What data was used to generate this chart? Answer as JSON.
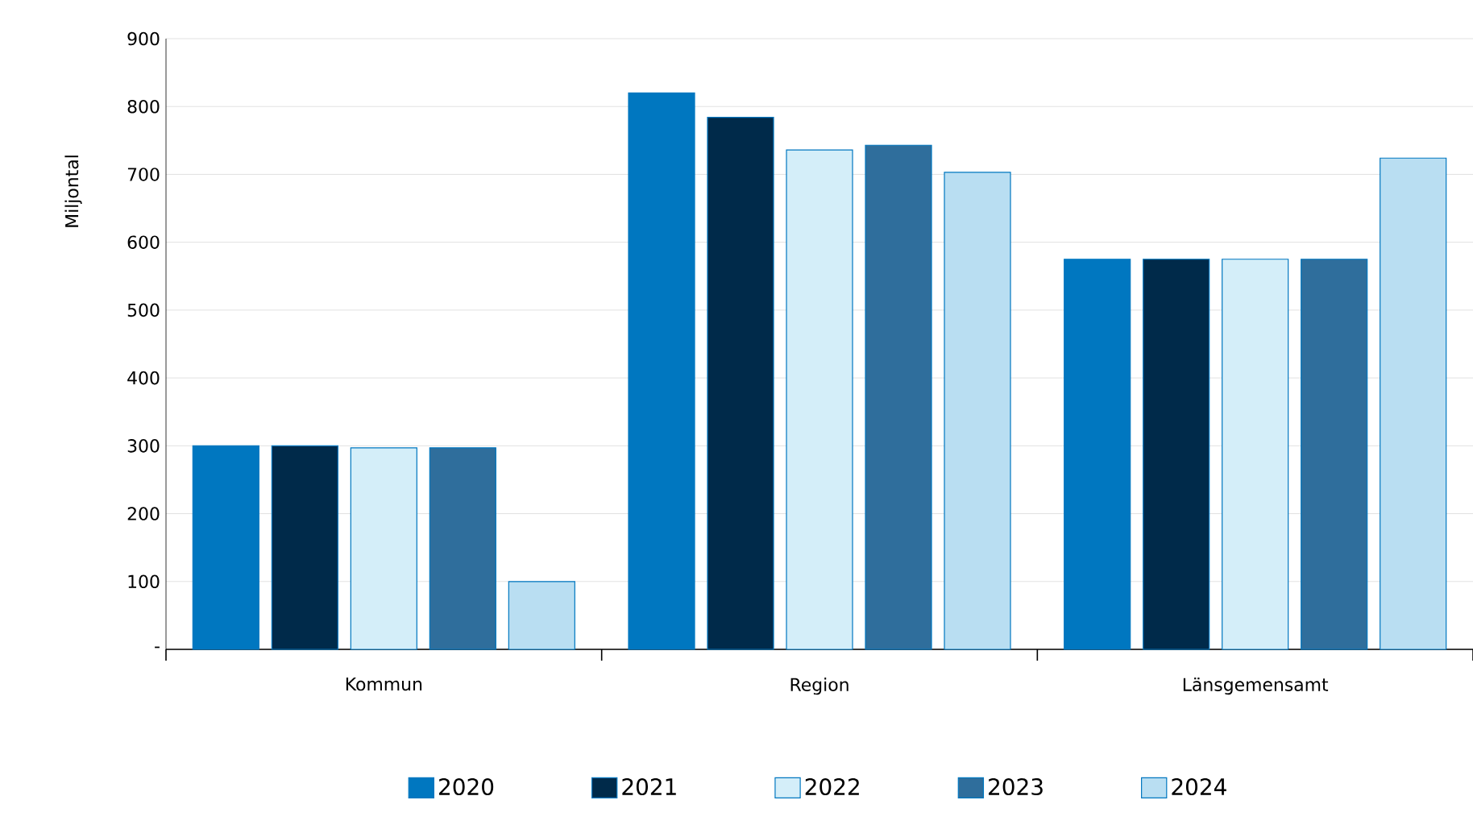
{
  "chart_data": {
    "type": "bar",
    "ylabel": "Miljontal",
    "categories": [
      "Kommun",
      "Region",
      "Länsgemensamt"
    ],
    "series": [
      {
        "name": "2020",
        "color": "#0077c0",
        "values": [
          300,
          820,
          575
        ]
      },
      {
        "name": "2021",
        "color": "#002a4a",
        "values": [
          300,
          784,
          575
        ]
      },
      {
        "name": "2022",
        "color": "#d4eef9",
        "values": [
          297,
          736,
          575
        ]
      },
      {
        "name": "2023",
        "color": "#2f6e9c",
        "values": [
          297,
          743,
          575
        ]
      },
      {
        "name": "2024",
        "color": "#b9def2",
        "values": [
          100,
          703,
          724
        ]
      }
    ],
    "ylim": [
      0,
      900
    ],
    "yticks": [
      {
        "value": 0,
        "label": "-"
      },
      100,
      200,
      300,
      400,
      500,
      600,
      700,
      800,
      900
    ],
    "grid": "y",
    "legend": "bottom"
  }
}
